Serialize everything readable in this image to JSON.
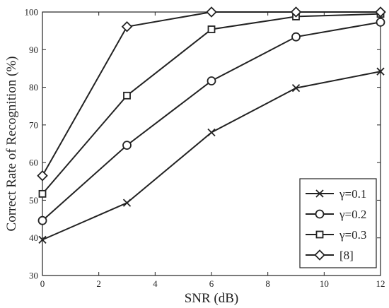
{
  "chart_data": {
    "type": "line",
    "xlabel": "SNR (dB)",
    "ylabel": "Correct Rate of Recognition (%)",
    "xlim": [
      0,
      12
    ],
    "ylim": [
      30,
      100
    ],
    "x_ticks": [
      0,
      2,
      4,
      6,
      8,
      10,
      12
    ],
    "y_ticks": [
      30,
      40,
      50,
      60,
      70,
      80,
      90,
      100
    ],
    "grid": false,
    "legend_position": "bottom-right",
    "x": [
      0,
      3,
      6,
      9,
      12
    ],
    "series": [
      {
        "name": "γ=0.1",
        "marker": "x",
        "color": "#222222",
        "values": [
          39.5,
          49.3,
          68.0,
          79.8,
          84.2
        ]
      },
      {
        "name": "γ=0.2",
        "marker": "circle",
        "color": "#222222",
        "values": [
          44.6,
          64.6,
          81.7,
          93.4,
          97.3
        ]
      },
      {
        "name": "γ=0.3",
        "marker": "square",
        "color": "#222222",
        "values": [
          51.7,
          77.8,
          95.4,
          98.8,
          99.5
        ]
      },
      {
        "name": "[8]",
        "marker": "diamond",
        "color": "#222222",
        "values": [
          56.5,
          96.1,
          100.0,
          100.0,
          100.0
        ]
      }
    ]
  }
}
